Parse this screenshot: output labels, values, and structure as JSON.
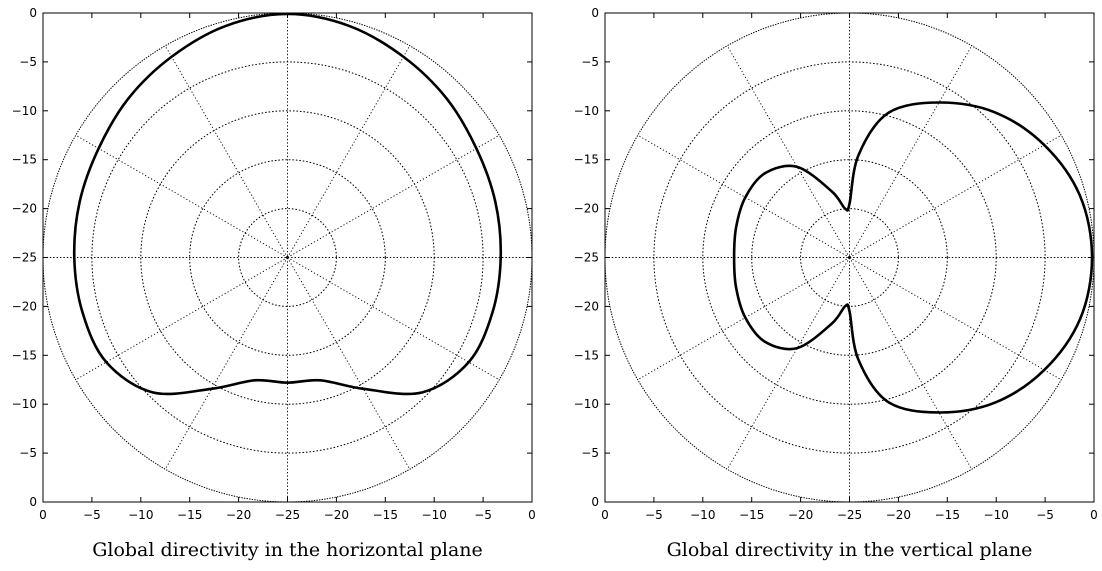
{
  "chart_data": [
    {
      "type": "polar",
      "caption": "Global directivity in the horizontal plane",
      "radial_unit": "dB",
      "r_range": [
        -25,
        0
      ],
      "ring_step_db": 5,
      "spoke_step_deg": 30,
      "grid": true,
      "y_tick_labels": [
        "0",
        "−5",
        "−10",
        "−15",
        "−20",
        "−25",
        "−20",
        "−15",
        "−10",
        "−5",
        "0"
      ],
      "x_tick_labels": [
        "0",
        "−5",
        "−10",
        "−15",
        "−20",
        "−25",
        "−20",
        "−15",
        "−10",
        "−5",
        "0"
      ],
      "series": [
        {
          "angle_deg": [
            0,
            15,
            30,
            45,
            60,
            75,
            90,
            105,
            120,
            135,
            150,
            165,
            180,
            195,
            210,
            225,
            240,
            255,
            270,
            285,
            300,
            315,
            330,
            345,
            360
          ],
          "db": [
            -3.2,
            -3.0,
            -2.7,
            -2.0,
            -1.3,
            -0.5,
            -0.1,
            -0.5,
            -1.3,
            -2.0,
            -2.7,
            -3.0,
            -3.2,
            -3.3,
            -3.6,
            -5.5,
            -9.5,
            -12.0,
            -12.2,
            -12.0,
            -9.5,
            -5.5,
            -3.6,
            -3.3,
            -3.2
          ]
        }
      ]
    },
    {
      "type": "polar",
      "caption": "Global directivity in the vertical plane",
      "radial_unit": "dB",
      "r_range": [
        -25,
        0
      ],
      "ring_step_db": 5,
      "spoke_step_deg": 30,
      "grid": true,
      "y_tick_labels": [
        "0",
        "−5",
        "−10",
        "−15",
        "−20",
        "−25",
        "−20",
        "−15",
        "−10",
        "−5",
        "0"
      ],
      "x_tick_labels": [
        "0",
        "−5",
        "−10",
        "−15",
        "−20",
        "−25",
        "−20",
        "−15",
        "−10",
        "−5",
        "0"
      ],
      "series": [
        {
          "angle_deg": [
            0,
            15,
            30,
            45,
            60,
            75,
            85,
            90,
            95,
            105,
            120,
            135,
            150,
            165,
            180,
            195,
            210,
            225,
            240,
            255,
            265,
            270,
            275,
            285,
            300,
            315,
            330,
            345,
            360
          ],
          "db": [
            -0.2,
            -0.6,
            -2.0,
            -4.0,
            -6.7,
            -9.7,
            -14.5,
            -19.5,
            -20.0,
            -18.0,
            -14.3,
            -12.8,
            -12.7,
            -13.0,
            -13.2,
            -13.0,
            -12.7,
            -12.8,
            -14.3,
            -18.0,
            -20.0,
            -19.5,
            -14.5,
            -9.7,
            -6.7,
            -4.0,
            -2.0,
            -0.6,
            -0.2
          ]
        }
      ]
    }
  ]
}
